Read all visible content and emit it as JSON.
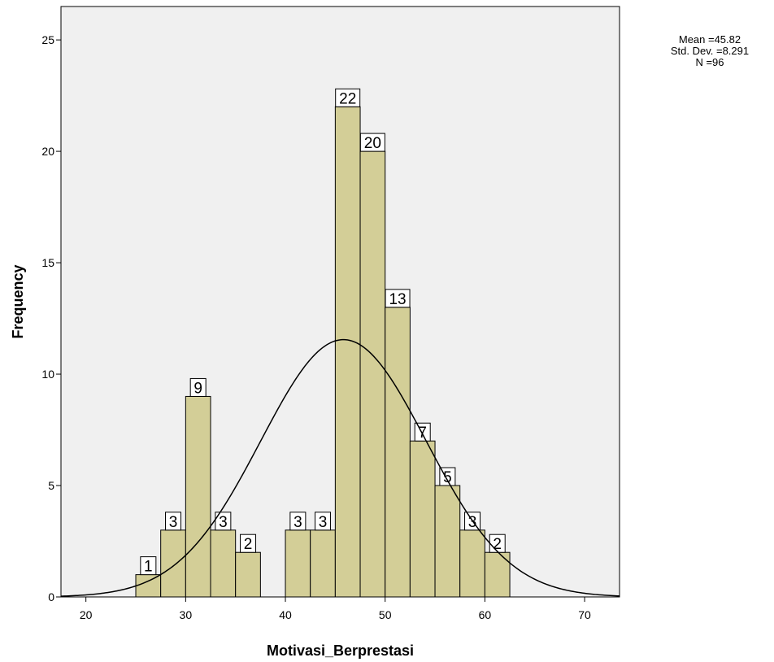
{
  "chart_data": {
    "type": "bar",
    "subtype": "histogram-with-normal-curve",
    "xlabel": "Motivasi_Berprestasi",
    "ylabel": "Frequency",
    "xlim": [
      17.5,
      73.5
    ],
    "ylim": [
      0,
      26.5
    ],
    "x_ticks": [
      "20",
      "30",
      "40",
      "50",
      "60",
      "70"
    ],
    "y_ticks": [
      "0",
      "5",
      "10",
      "15",
      "20",
      "25"
    ],
    "bin_width": 2.5,
    "bins": [
      {
        "start": 25,
        "end": 27.5,
        "value": 1,
        "label": "1"
      },
      {
        "start": 27.5,
        "end": 30,
        "value": 3,
        "label": "3"
      },
      {
        "start": 30,
        "end": 32.5,
        "value": 9,
        "label": "9"
      },
      {
        "start": 32.5,
        "end": 35,
        "value": 3,
        "label": "3"
      },
      {
        "start": 35,
        "end": 37.5,
        "value": 2,
        "label": "2"
      },
      {
        "start": 40,
        "end": 42.5,
        "value": 3,
        "label": "3"
      },
      {
        "start": 42.5,
        "end": 45,
        "value": 3,
        "label": "3"
      },
      {
        "start": 45,
        "end": 47.5,
        "value": 22,
        "label": "22"
      },
      {
        "start": 47.5,
        "end": 50,
        "value": 20,
        "label": "20"
      },
      {
        "start": 50,
        "end": 52.5,
        "value": 13,
        "label": "13"
      },
      {
        "start": 52.5,
        "end": 55,
        "value": 7,
        "label": "7"
      },
      {
        "start": 55,
        "end": 57.5,
        "value": 5,
        "label": "5"
      },
      {
        "start": 57.5,
        "end": 60,
        "value": 3,
        "label": "3"
      },
      {
        "start": 60,
        "end": 62.5,
        "value": 2,
        "label": "2"
      }
    ],
    "normal_curve": {
      "mean": 45.82,
      "std": 8.291,
      "n": 96
    },
    "stats_text": {
      "mean": "Mean =45.82",
      "std": "Std. Dev. =8.291",
      "n": "N =96"
    },
    "grid": false
  },
  "colors": {
    "plot_background": "#f0f0f0",
    "bar_fill": "#d3ce97",
    "bar_stroke": "#000000",
    "curve": "#000000"
  }
}
